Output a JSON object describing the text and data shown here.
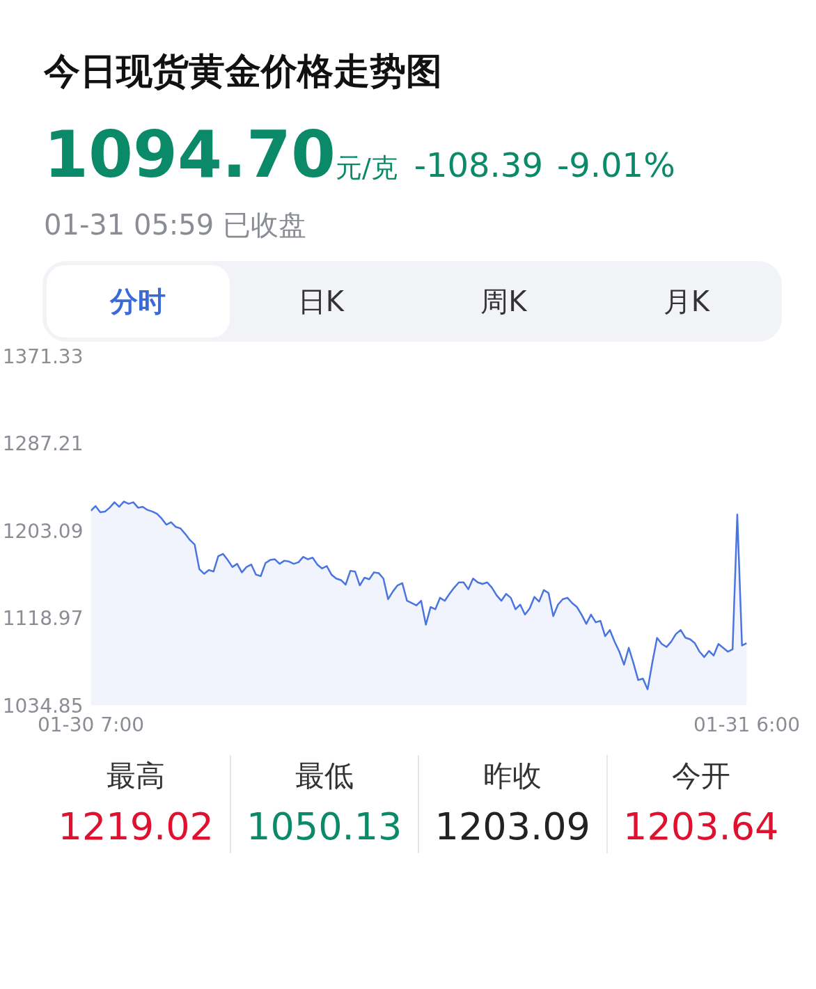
{
  "chart_data": {
    "type": "area",
    "title": "今日现货黄金价格走势图",
    "annotations": [
      "1094.70",
      "元/克",
      "-108.39",
      "-9.01%",
      "01-31 05:59 已收盘",
      "分时",
      "日K",
      "周K",
      "月K",
      "最高",
      "1219.02",
      "最低",
      "1050.13",
      "昨收",
      "1203.09",
      "今开",
      "1203.64"
    ],
    "categories": [
      "01-30 7:00",
      null,
      null,
      null,
      null,
      null,
      null,
      null,
      null,
      null,
      null,
      null,
      null,
      null,
      null,
      null,
      null,
      null,
      null,
      null,
      null,
      null,
      null,
      null,
      null,
      null,
      null,
      null,
      null,
      null,
      null,
      null,
      null,
      null,
      null,
      null,
      null,
      null,
      null,
      null,
      null,
      null,
      null,
      null,
      null,
      null,
      null,
      null,
      null,
      null,
      null,
      null,
      null,
      null,
      null,
      null,
      null,
      null,
      null,
      null,
      null,
      null,
      null,
      null,
      null,
      null,
      null,
      null,
      null,
      null,
      null,
      null,
      null,
      null,
      null,
      null,
      null,
      null,
      null,
      null,
      null,
      null,
      null,
      null,
      null,
      null,
      null,
      null,
      null,
      null,
      null,
      null,
      null,
      null,
      null,
      null,
      null,
      null,
      null,
      null,
      null,
      null,
      null,
      null,
      null,
      null,
      null,
      null,
      null,
      null,
      null,
      null,
      null,
      null,
      null,
      null,
      null,
      null,
      null,
      null,
      null,
      null,
      null,
      null,
      null,
      null,
      null,
      null,
      null,
      null,
      null,
      null,
      null,
      null,
      null,
      null,
      null,
      null,
      null,
      "01-31 6:00"
    ],
    "series": [
      {
        "color": "#4a74e0",
        "values": [
          1221.9,
          1226.4,
          1220.5,
          1221.2,
          1224.9,
          1230.1,
          1225.7,
          1230.8,
          1228.6,
          1230.1,
          1224.9,
          1225.7,
          1222.7,
          1221.2,
          1219.0,
          1214.5,
          1208.6,
          1210.9,
          1206.4,
          1204.9,
          1199.7,
          1193.8,
          1189.4,
          1165.7,
          1161.3,
          1165.0,
          1163.5,
          1178.3,
          1180.5,
          1174.6,
          1167.9,
          1170.9,
          1162.7,
          1167.9,
          1170.2,
          1160.5,
          1159.1,
          1171.6,
          1174.6,
          1175.3,
          1170.9,
          1173.9,
          1173.1,
          1170.9,
          1172.4,
          1177.6,
          1175.3,
          1176.8,
          1170.2,
          1166.5,
          1168.7,
          1160.5,
          1156.8,
          1155.3,
          1150.9,
          1164.2,
          1163.5,
          1150.2,
          1157.6,
          1156.1,
          1162.7,
          1162.0,
          1156.8,
          1136.9,
          1144.3,
          1150.2,
          1152.4,
          1135.4,
          1133.2,
          1130.9,
          1135.4,
          1112.4,
          1129.4,
          1127.2,
          1138.3,
          1135.4,
          1142.0,
          1148.0,
          1153.1,
          1153.1,
          1146.5,
          1156.8,
          1153.1,
          1151.6,
          1153.1,
          1148.0,
          1140.6,
          1135.4,
          1142.0,
          1138.3,
          1127.2,
          1131.7,
          1122.1,
          1128.0,
          1139.1,
          1134.6,
          1145.7,
          1142.8,
          1120.6,
          1131.7,
          1136.9,
          1138.3,
          1133.2,
          1129.5,
          1122.1,
          1113.2,
          1122.1,
          1114.7,
          1116.1,
          1101.4,
          1107.3,
          1096.1,
          1086.5,
          1074.0,
          1090.2,
          1075.4,
          1059.2,
          1060.6,
          1050.3,
          1076.2,
          1099.8,
          1093.9,
          1091.0,
          1096.1,
          1103.5,
          1107.3,
          1099.9,
          1098.4,
          1094.7,
          1086.5,
          1081.3,
          1087.2,
          1082.8,
          1093.9,
          1090.2,
          1086.5,
          1088.8,
          1218.3,
          1092.4,
          1094.7
        ]
      }
    ],
    "ylim": [
      1034.85,
      1371.33
    ],
    "yticks": [
      1034.85,
      1118.97,
      1203.09,
      1287.21,
      1371.33
    ],
    "grid": false,
    "marker": "none",
    "line_style": "solid"
  }
}
